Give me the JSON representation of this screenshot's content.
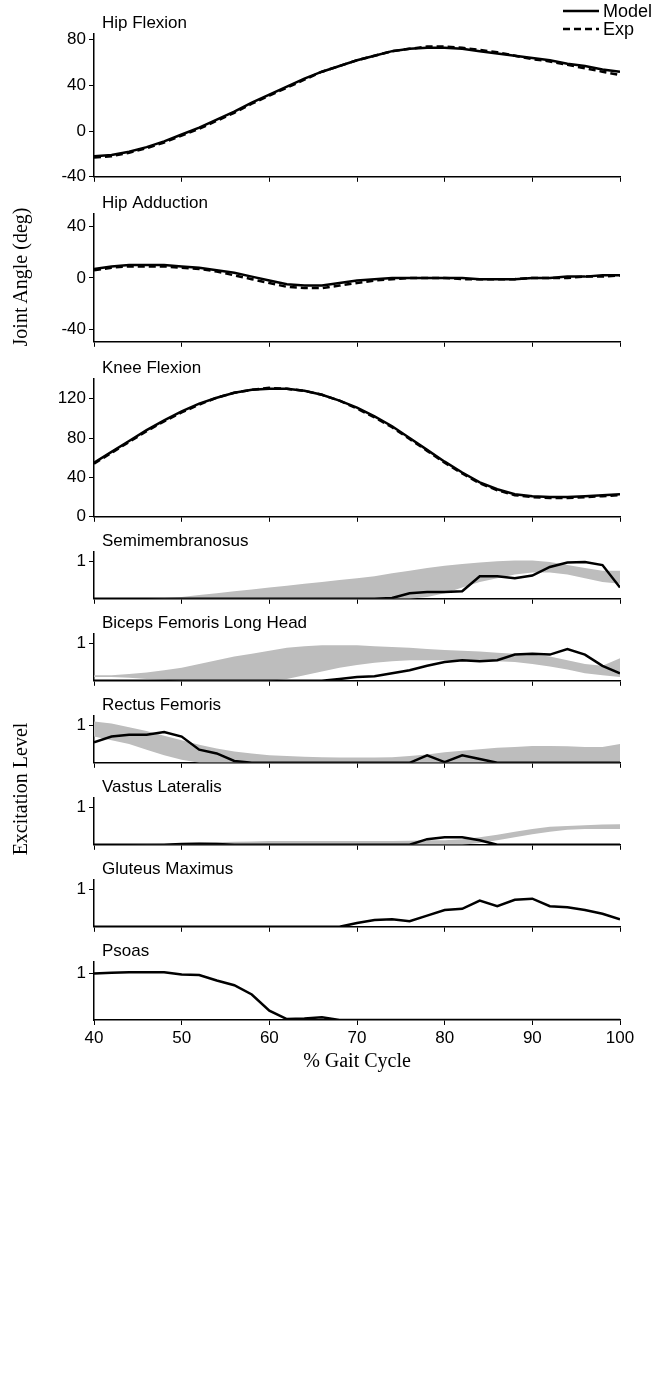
{
  "chart_data": [
    {
      "type": "line",
      "title": "Hip Flexion",
      "ylabel": "Joint Angle (deg)",
      "legend": "upper right",
      "grid": false,
      "tick_labels": "y",
      "x": [
        40,
        42,
        44,
        46,
        48,
        50,
        52,
        54,
        56,
        58,
        60,
        62,
        64,
        66,
        68,
        70,
        72,
        74,
        76,
        78,
        80,
        82,
        84,
        86,
        88,
        90,
        92,
        94,
        96,
        98,
        100
      ],
      "xlim": [
        40,
        100
      ],
      "xticks": [
        40,
        50,
        60,
        70,
        80,
        90,
        100
      ],
      "ylim": [
        -40,
        85
      ],
      "yticks": [
        -40,
        0,
        40,
        80
      ],
      "series": [
        {
          "name": "Model",
          "color": "#000000",
          "line_style": "solid",
          "values": [
            -22,
            -21,
            -18,
            -14,
            -9,
            -3,
            3,
            10,
            17,
            25,
            32,
            39,
            46,
            52,
            57,
            62,
            66,
            70,
            72,
            73,
            73,
            72,
            70,
            68,
            66,
            64,
            62,
            59,
            57,
            54,
            52
          ]
        },
        {
          "name": "Exp",
          "color": "#000000",
          "line_style": "dashed",
          "values": [
            -23,
            -22,
            -19,
            -15,
            -10,
            -4,
            2,
            9,
            16,
            24,
            31,
            38,
            45,
            52,
            57,
            62,
            66,
            70,
            72,
            74,
            74,
            73,
            71,
            69,
            66,
            63,
            61,
            58,
            55,
            52,
            49
          ]
        }
      ]
    },
    {
      "type": "line",
      "title": "Hip Adduction",
      "grid": false,
      "tick_labels": "y",
      "x": [
        40,
        42,
        44,
        46,
        48,
        50,
        52,
        54,
        56,
        58,
        60,
        62,
        64,
        66,
        68,
        70,
        72,
        74,
        76,
        78,
        80,
        82,
        84,
        86,
        88,
        90,
        92,
        94,
        96,
        98,
        100
      ],
      "xlim": [
        40,
        100
      ],
      "xticks": [
        40,
        50,
        60,
        70,
        80,
        90,
        100
      ],
      "ylim": [
        -50,
        50
      ],
      "yticks": [
        -40,
        0,
        40
      ],
      "series": [
        {
          "name": "Model",
          "color": "#000000",
          "line_style": "solid",
          "values": [
            7,
            9,
            10,
            10,
            10,
            9,
            8,
            6,
            4,
            1,
            -2,
            -5,
            -6,
            -6,
            -4,
            -2,
            -1,
            0,
            0,
            0,
            0,
            0,
            -1,
            -1,
            -1,
            0,
            0,
            1,
            1,
            2,
            2
          ]
        },
        {
          "name": "Exp",
          "color": "#000000",
          "line_style": "dashed",
          "values": [
            6,
            8,
            9,
            9,
            9,
            8,
            7,
            5,
            2,
            -1,
            -4,
            -7,
            -8,
            -8,
            -6,
            -4,
            -2,
            -1,
            0,
            0,
            0,
            -1,
            -1,
            -1,
            -1,
            0,
            0,
            0,
            1,
            1,
            2
          ]
        }
      ]
    },
    {
      "type": "line",
      "title": "Knee Flexion",
      "grid": false,
      "tick_labels": "y",
      "x": [
        40,
        42,
        44,
        46,
        48,
        50,
        52,
        54,
        56,
        58,
        60,
        62,
        64,
        66,
        68,
        70,
        72,
        74,
        76,
        78,
        80,
        82,
        84,
        86,
        88,
        90,
        92,
        94,
        96,
        98,
        100
      ],
      "xlim": [
        40,
        100
      ],
      "xticks": [
        40,
        50,
        60,
        70,
        80,
        90,
        100
      ],
      "ylim": [
        0,
        140
      ],
      "yticks": [
        0,
        40,
        80,
        120
      ],
      "series": [
        {
          "name": "Model",
          "color": "#000000",
          "line_style": "solid",
          "values": [
            55,
            66,
            77,
            88,
            98,
            107,
            115,
            121,
            126,
            129,
            130,
            130,
            128,
            124,
            118,
            111,
            102,
            92,
            80,
            68,
            56,
            45,
            35,
            28,
            23,
            21,
            20,
            20,
            21,
            22,
            23
          ]
        },
        {
          "name": "Exp",
          "color": "#000000",
          "line_style": "dashed",
          "values": [
            54,
            65,
            76,
            87,
            97,
            106,
            114,
            121,
            126,
            129,
            131,
            130,
            128,
            124,
            118,
            110,
            101,
            91,
            79,
            67,
            55,
            44,
            34,
            27,
            22,
            20,
            19,
            19,
            20,
            21,
            22
          ]
        }
      ]
    },
    {
      "type": "line",
      "title": "Semimembranosus",
      "ylabel": "Excitation Level",
      "grid": false,
      "tick_labels": "y",
      "x": [
        40,
        42,
        44,
        46,
        48,
        50,
        52,
        54,
        56,
        58,
        60,
        62,
        64,
        66,
        68,
        70,
        72,
        74,
        76,
        78,
        80,
        82,
        84,
        86,
        88,
        90,
        92,
        94,
        96,
        98,
        100
      ],
      "xlim": [
        40,
        100
      ],
      "xticks": [
        40,
        50,
        60,
        70,
        80,
        90,
        100
      ],
      "ylim": [
        0,
        1.25
      ],
      "yticks": [
        1
      ],
      "series": [
        {
          "type": "area",
          "color": "#bdbdbd",
          "lower": [
            0,
            0,
            0,
            0,
            0,
            0,
            0,
            0,
            0,
            0,
            0,
            0,
            0,
            0,
            0,
            0,
            0,
            0,
            0,
            0.05,
            0.15,
            0.3,
            0.45,
            0.55,
            0.65,
            0.7,
            0.7,
            0.65,
            0.55,
            0.45,
            0.4
          ],
          "upper": [
            0,
            0,
            0,
            0,
            0.02,
            0.05,
            0.1,
            0.15,
            0.2,
            0.25,
            0.3,
            0.35,
            0.4,
            0.45,
            0.5,
            0.55,
            0.6,
            0.68,
            0.75,
            0.82,
            0.88,
            0.93,
            0.97,
            1.0,
            1.02,
            1.02,
            0.98,
            0.9,
            0.82,
            0.75,
            0.75
          ]
        },
        {
          "color": "#000000",
          "line_style": "solid",
          "values": [
            0,
            0,
            0,
            0,
            0,
            0,
            0,
            0,
            0,
            0,
            0,
            0,
            0,
            0,
            0,
            0,
            0,
            0.02,
            0.15,
            0.18,
            0.18,
            0.2,
            0.6,
            0.6,
            0.55,
            0.62,
            0.85,
            0.97,
            0.98,
            0.9,
            0.3
          ]
        }
      ]
    },
    {
      "type": "line",
      "title": "Biceps Femoris Long Head",
      "grid": false,
      "tick_labels": "y",
      "x": [
        40,
        42,
        44,
        46,
        48,
        50,
        52,
        54,
        56,
        58,
        60,
        62,
        64,
        66,
        68,
        70,
        72,
        74,
        76,
        78,
        80,
        82,
        84,
        86,
        88,
        90,
        92,
        94,
        96,
        98,
        100
      ],
      "xlim": [
        40,
        100
      ],
      "xticks": [
        40,
        50,
        60,
        70,
        80,
        90,
        100
      ],
      "ylim": [
        0,
        1.25
      ],
      "yticks": [
        1
      ],
      "series": [
        {
          "type": "area",
          "color": "#bdbdbd",
          "lower": [
            0.1,
            0.1,
            0.08,
            0.05,
            0.03,
            0,
            0,
            0,
            0,
            0,
            0,
            0.05,
            0.15,
            0.25,
            0.35,
            0.42,
            0.48,
            0.52,
            0.55,
            0.55,
            0.55,
            0.55,
            0.55,
            0.52,
            0.5,
            0.45,
            0.38,
            0.3,
            0.2,
            0.15,
            0.1
          ],
          "upper": [
            0.15,
            0.15,
            0.18,
            0.22,
            0.28,
            0.35,
            0.45,
            0.55,
            0.65,
            0.72,
            0.8,
            0.88,
            0.92,
            0.95,
            0.95,
            0.95,
            0.92,
            0.9,
            0.88,
            0.85,
            0.82,
            0.8,
            0.78,
            0.75,
            0.72,
            0.7,
            0.65,
            0.55,
            0.45,
            0.4,
            0.6
          ]
        },
        {
          "color": "#000000",
          "line_style": "solid",
          "values": [
            0,
            0,
            0,
            0,
            0,
            0,
            0,
            0,
            0,
            0,
            0,
            0,
            0,
            0,
            0.05,
            0.1,
            0.12,
            0.2,
            0.28,
            0.4,
            0.5,
            0.55,
            0.52,
            0.55,
            0.7,
            0.72,
            0.7,
            0.85,
            0.7,
            0.4,
            0.2
          ]
        }
      ]
    },
    {
      "type": "line",
      "title": "Rectus Femoris",
      "grid": false,
      "tick_labels": "y",
      "x": [
        40,
        42,
        44,
        46,
        48,
        50,
        52,
        54,
        56,
        58,
        60,
        62,
        64,
        66,
        68,
        70,
        72,
        74,
        76,
        78,
        80,
        82,
        84,
        86,
        88,
        90,
        92,
        94,
        96,
        98,
        100
      ],
      "xlim": [
        40,
        100
      ],
      "xticks": [
        40,
        50,
        60,
        70,
        80,
        90,
        100
      ],
      "ylim": [
        0,
        1.25
      ],
      "yticks": [
        1
      ],
      "series": [
        {
          "type": "area",
          "color": "#bdbdbd",
          "lower": [
            0.7,
            0.6,
            0.5,
            0.35,
            0.2,
            0.08,
            0,
            0,
            0,
            0,
            0,
            0,
            0,
            0,
            0,
            0,
            0,
            0,
            0,
            0,
            0,
            0,
            0,
            0,
            0,
            0,
            0,
            0,
            0,
            0,
            0
          ],
          "upper": [
            1.1,
            1.05,
            0.95,
            0.85,
            0.72,
            0.6,
            0.48,
            0.38,
            0.3,
            0.25,
            0.2,
            0.18,
            0.16,
            0.15,
            0.14,
            0.14,
            0.14,
            0.15,
            0.18,
            0.22,
            0.28,
            0.32,
            0.36,
            0.4,
            0.42,
            0.45,
            0.45,
            0.44,
            0.42,
            0.42,
            0.5
          ]
        },
        {
          "color": "#000000",
          "line_style": "solid",
          "values": [
            0.55,
            0.7,
            0.75,
            0.75,
            0.82,
            0.7,
            0.35,
            0.25,
            0.05,
            0,
            0,
            0,
            0,
            0,
            0,
            0,
            0,
            0,
            0,
            0.2,
            0.02,
            0.2,
            0.1,
            0,
            0,
            0,
            0,
            0,
            0,
            0,
            0
          ]
        }
      ]
    },
    {
      "type": "line",
      "title": "Vastus Lateralis",
      "grid": false,
      "tick_labels": "y",
      "x": [
        40,
        42,
        44,
        46,
        48,
        50,
        52,
        54,
        56,
        58,
        60,
        62,
        64,
        66,
        68,
        70,
        72,
        74,
        76,
        78,
        80,
        82,
        84,
        86,
        88,
        90,
        92,
        94,
        96,
        98,
        100
      ],
      "xlim": [
        40,
        100
      ],
      "xticks": [
        40,
        50,
        60,
        70,
        80,
        90,
        100
      ],
      "ylim": [
        0,
        1.25
      ],
      "yticks": [
        1
      ],
      "series": [
        {
          "type": "area",
          "color": "#bdbdbd",
          "lower": [
            0,
            0,
            0,
            0,
            0,
            0,
            0,
            0,
            0,
            0,
            0,
            0,
            0,
            0,
            0,
            0,
            0,
            0,
            0,
            0,
            0,
            0,
            0.05,
            0.12,
            0.2,
            0.28,
            0.35,
            0.4,
            0.42,
            0.42,
            0.42
          ],
          "upper": [
            0,
            0,
            0.01,
            0.02,
            0.03,
            0.05,
            0.06,
            0.07,
            0.08,
            0.09,
            0.1,
            0.1,
            0.1,
            0.1,
            0.1,
            0.1,
            0.1,
            0.1,
            0.11,
            0.12,
            0.12,
            0.15,
            0.2,
            0.27,
            0.35,
            0.42,
            0.48,
            0.5,
            0.52,
            0.54,
            0.55
          ]
        },
        {
          "color": "#000000",
          "line_style": "solid",
          "values": [
            0,
            0,
            0,
            0,
            0,
            0.02,
            0.03,
            0.02,
            0,
            0,
            0,
            0,
            0,
            0,
            0,
            0,
            0,
            0,
            0,
            0.15,
            0.2,
            0.2,
            0.12,
            0,
            0,
            0,
            0,
            0,
            0,
            0,
            0
          ]
        }
      ]
    },
    {
      "type": "line",
      "title": "Gluteus Maximus",
      "grid": false,
      "tick_labels": "y",
      "x": [
        40,
        42,
        44,
        46,
        48,
        50,
        52,
        54,
        56,
        58,
        60,
        62,
        64,
        66,
        68,
        70,
        72,
        74,
        76,
        78,
        80,
        82,
        84,
        86,
        88,
        90,
        92,
        94,
        96,
        98,
        100
      ],
      "xlim": [
        40,
        100
      ],
      "xticks": [
        40,
        50,
        60,
        70,
        80,
        90,
        100
      ],
      "ylim": [
        0,
        1.25
      ],
      "yticks": [
        1
      ],
      "series": [
        {
          "color": "#000000",
          "line_style": "solid",
          "values": [
            0,
            0,
            0,
            0,
            0,
            0,
            0,
            0,
            0,
            0,
            0,
            0,
            0,
            0,
            0,
            0.1,
            0.18,
            0.2,
            0.15,
            0.3,
            0.45,
            0.48,
            0.7,
            0.55,
            0.72,
            0.75,
            0.55,
            0.52,
            0.45,
            0.35,
            0.2
          ]
        }
      ]
    },
    {
      "type": "line",
      "title": "Psoas",
      "xlabel": "% Gait Cycle",
      "grid": false,
      "tick_labels": true,
      "x": [
        40,
        42,
        44,
        46,
        48,
        50,
        52,
        54,
        56,
        58,
        60,
        62,
        64,
        66,
        68,
        70,
        72,
        74,
        76,
        78,
        80,
        82,
        84,
        86,
        88,
        90,
        92,
        94,
        96,
        98,
        100
      ],
      "xlim": [
        40,
        100
      ],
      "xticks": [
        40,
        50,
        60,
        70,
        80,
        90,
        100
      ],
      "ylim": [
        0,
        1.25
      ],
      "yticks": [
        1
      ],
      "series": [
        {
          "color": "#000000",
          "line_style": "solid",
          "values": [
            1.0,
            1.02,
            1.03,
            1.03,
            1.03,
            0.98,
            0.97,
            0.85,
            0.75,
            0.55,
            0.2,
            0.02,
            0.03,
            0.06,
            0,
            0,
            0,
            0,
            0,
            0,
            0,
            0,
            0,
            0,
            0,
            0,
            0,
            0,
            0,
            0,
            0
          ]
        }
      ]
    }
  ]
}
